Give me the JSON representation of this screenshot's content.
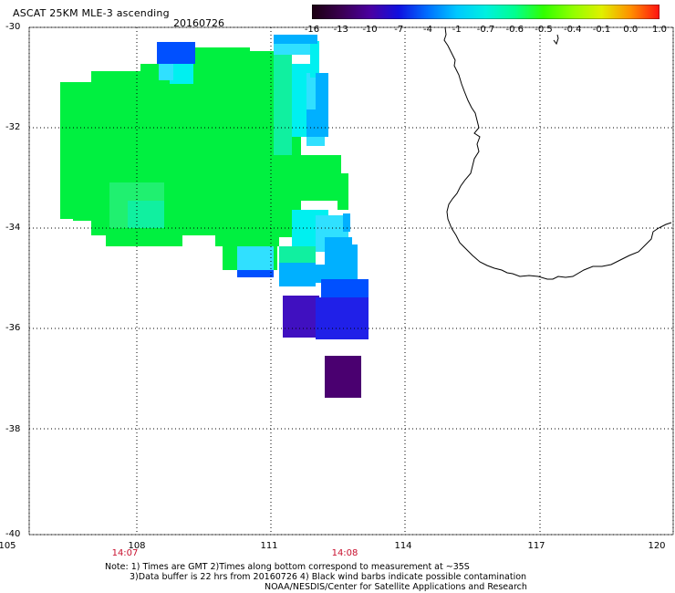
{
  "header": {
    "title": "ASCAT 25KM MLE-3 ascending",
    "date": "20160726"
  },
  "colorbar": {
    "ticks": [
      "-16",
      "-13",
      "-10",
      "-7",
      "-4",
      "-1",
      "-0.7",
      "-0.6",
      "-0.5",
      "-0.4",
      "-0.1",
      "0.0",
      "1.0"
    ],
    "colors": [
      "#1a0010",
      "#3a0050",
      "#4b00a0",
      "#1010e0",
      "#0070ff",
      "#00c8ff",
      "#00f0e0",
      "#00ff90",
      "#30ff00",
      "#90ff00",
      "#e0f000",
      "#ff9000",
      "#ff1010"
    ]
  },
  "axes": {
    "lat_labels": [
      "-30",
      "-32",
      "-34",
      "-36",
      "-38",
      "-40"
    ],
    "lon_labels": [
      "105",
      "108",
      "111",
      "114",
      "117",
      "120"
    ],
    "times": [
      "14:07",
      "14:08"
    ]
  },
  "notes": {
    "line1": "Note: 1) Times are GMT 2)Times along bottom correspond to measurement at ~35S",
    "line2": "3)Data buffer is 22 hrs from 20160726 4) Black wind barbs indicate possible contamination",
    "line3": "NOAA/NESDIS/Center for Satellite Applications and Research"
  },
  "swath_colors": {
    "green": "#00f040",
    "green_light": "#20f070",
    "green_blue": "#10f0a0",
    "cyan": "#00f0f0",
    "cyan_light": "#30e0ff",
    "sky": "#00b0ff",
    "blue": "#0050ff",
    "deep_blue": "#2020e8",
    "indigo": "#4010c0",
    "purple": "#4a0070"
  }
}
